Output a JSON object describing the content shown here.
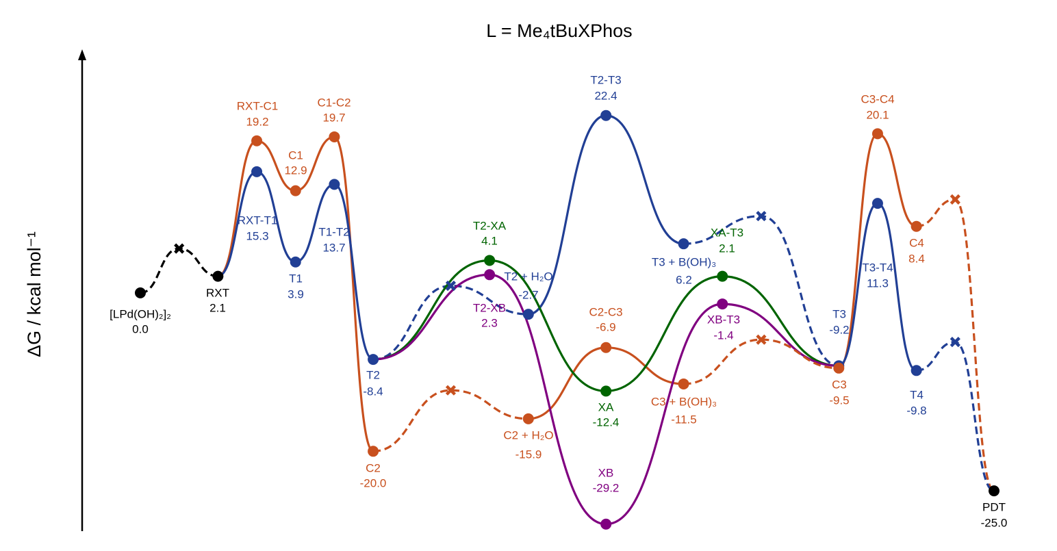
{
  "chart_data": {
    "type": "energy_profile",
    "title": "L = Me₄tBuXPhos",
    "y_label": "ΔG / kcal mol⁻¹",
    "xlim": [
      0,
      22
    ],
    "ylim": [
      -30,
      30.5
    ],
    "nodes": [
      {
        "label": "[LPd(OH)₂]₂",
        "value": 0.0,
        "value_label": "0.0",
        "x": 0,
        "color": "#000000",
        "marker": "o"
      },
      {
        "value": 5.6,
        "x": 1,
        "color": "#000000",
        "marker": "x"
      },
      {
        "label": "RXT",
        "value": 2.1,
        "value_label": "2.1",
        "x": 2,
        "color": "#000000",
        "marker": "o"
      },
      {
        "label": "RXT-C1",
        "value": 19.2,
        "value_label": "19.2",
        "x": 3,
        "color": "#c8501e",
        "marker": "o"
      },
      {
        "label": "C1",
        "value": 12.9,
        "value_label": "12.9",
        "x": 4,
        "color": "#c8501e",
        "marker": "o"
      },
      {
        "label": "C1-C2",
        "value": 19.7,
        "value_label": "19.7",
        "x": 5,
        "color": "#c8501e",
        "marker": "o"
      },
      {
        "label": "RXT-T1",
        "value": 15.3,
        "value_label": "15.3",
        "x": 3,
        "color": "#213f95",
        "marker": "o"
      },
      {
        "label": "T1",
        "value": 3.9,
        "value_label": "3.9",
        "x": 4,
        "color": "#213f95",
        "marker": "o"
      },
      {
        "label": "T1-T2",
        "value": 13.7,
        "value_label": "13.7",
        "x": 5,
        "color": "#213f95",
        "marker": "o"
      },
      {
        "label": "T2",
        "value": -8.4,
        "value_label": "-8.4",
        "x": 6,
        "color": "#213f95",
        "marker": "o"
      },
      {
        "label": "C2",
        "value": -20.0,
        "value_label": "-20.0",
        "x": 6,
        "color": "#c8501e",
        "marker": "o"
      },
      {
        "value": 0.9,
        "x": 8,
        "color": "#213f95",
        "marker": "x"
      },
      {
        "value": -12.3,
        "x": 8,
        "color": "#c8501e",
        "marker": "x"
      },
      {
        "label": "T2-XA",
        "value": 4.1,
        "value_label": "4.1",
        "x": 9,
        "color": "#006400",
        "marker": "o"
      },
      {
        "label": "T2-XB",
        "value": 2.3,
        "value_label": "2.3",
        "x": 9,
        "color": "#800080",
        "marker": "o"
      },
      {
        "label": "T2 + H₂O",
        "value": -2.7,
        "value_label": "-2.7",
        "x": 10,
        "color": "#213f95",
        "marker": "o"
      },
      {
        "label": "C2 + H₂O",
        "value": -15.9,
        "value_label": "-15.9",
        "x": 10,
        "color": "#c8501e",
        "marker": "o"
      },
      {
        "label": "T2-T3",
        "value": 22.4,
        "value_label": "22.4",
        "x": 12,
        "color": "#213f95",
        "marker": "o"
      },
      {
        "label": "C2-C3",
        "value": -6.9,
        "value_label": "-6.9",
        "x": 12,
        "color": "#c8501e",
        "marker": "o"
      },
      {
        "label": "XA",
        "value": -12.4,
        "value_label": "-12.4",
        "x": 12,
        "color": "#006400",
        "marker": "o"
      },
      {
        "label": "XB",
        "value": -29.2,
        "value_label": "-29.2",
        "x": 12,
        "color": "#800080",
        "marker": "o"
      },
      {
        "label": "T3 + B(OH)₃",
        "value": 6.2,
        "value_label": "6.2",
        "x": 14,
        "color": "#213f95",
        "marker": "o"
      },
      {
        "label": "XA-T3",
        "value": 2.1,
        "value_label": "2.1",
        "x": 15,
        "color": "#006400",
        "marker": "o"
      },
      {
        "label": "C3 + B(OH)₃",
        "value": -11.5,
        "value_label": "-11.5",
        "x": 14,
        "color": "#c8501e",
        "marker": "o"
      },
      {
        "label": "XB-T3",
        "value": -1.4,
        "value_label": "-1.4",
        "x": 15,
        "color": "#800080",
        "marker": "o"
      },
      {
        "value": 9.7,
        "x": 16,
        "color": "#213f95",
        "marker": "x"
      },
      {
        "value": -5.9,
        "x": 16,
        "color": "#c8501e",
        "marker": "x"
      },
      {
        "label": "T3",
        "value": -9.2,
        "value_label": "-9.2",
        "x": 18,
        "color": "#213f95",
        "marker": "o"
      },
      {
        "label": "C3",
        "value": -9.5,
        "value_label": "-9.5",
        "x": 18,
        "color": "#c8501e",
        "marker": "o"
      },
      {
        "label": "C3-C4",
        "value": 20.1,
        "value_label": "20.1",
        "x": 19,
        "color": "#c8501e",
        "marker": "o"
      },
      {
        "label": "T3-T4",
        "value": 11.3,
        "value_label": "11.3",
        "x": 19,
        "color": "#213f95",
        "marker": "o"
      },
      {
        "label": "C4",
        "value": 8.4,
        "value_label": "8.4",
        "x": 20,
        "color": "#c8501e",
        "marker": "o"
      },
      {
        "label": "T4",
        "value": -9.8,
        "value_label": "-9.8",
        "x": 20,
        "color": "#213f95",
        "marker": "o"
      },
      {
        "value": 11.8,
        "x": 21,
        "color": "#c8501e",
        "marker": "x"
      },
      {
        "value": -6.2,
        "x": 21,
        "color": "#213f95",
        "marker": "x"
      },
      {
        "label": "PDT",
        "value": -25.0,
        "value_label": "-25.0",
        "x": 22,
        "color": "#000000",
        "marker": "o"
      }
    ],
    "series": [
      {
        "color": "#000000",
        "dashed": true,
        "nodes": [
          0,
          1,
          2
        ]
      },
      {
        "color": "#c8501e",
        "dashed": false,
        "nodes": [
          2,
          3,
          4,
          5,
          10
        ]
      },
      {
        "color": "#213f95",
        "dashed": false,
        "nodes": [
          2,
          6,
          7,
          8,
          9
        ]
      },
      {
        "color": "#213f95",
        "dashed": true,
        "nodes": [
          9,
          11,
          15
        ]
      },
      {
        "color": "#c8501e",
        "dashed": true,
        "nodes": [
          10,
          12,
          16
        ]
      },
      {
        "color": "#213f95",
        "dashed": false,
        "nodes": [
          15,
          17,
          21
        ]
      },
      {
        "color": "#c8501e",
        "dashed": false,
        "nodes": [
          16,
          18,
          23
        ]
      },
      {
        "color": "#006400",
        "dashed": false,
        "nodes": [
          9,
          13,
          19,
          22,
          27
        ]
      },
      {
        "color": "#800080",
        "dashed": false,
        "nodes": [
          9,
          14,
          20,
          24,
          27
        ]
      },
      {
        "color": "#c8501e",
        "dashed": true,
        "nodes": [
          23,
          26,
          28
        ]
      },
      {
        "color": "#213f95",
        "dashed": true,
        "nodes": [
          21,
          25,
          27
        ]
      },
      {
        "color": "#c8501e",
        "dashed": false,
        "nodes": [
          28,
          29,
          31
        ]
      },
      {
        "color": "#213f95",
        "dashed": false,
        "nodes": [
          27,
          30,
          32
        ]
      },
      {
        "color": "#c8501e",
        "dashed": true,
        "nodes": [
          31,
          33,
          35
        ]
      },
      {
        "color": "#213f95",
        "dashed": true,
        "nodes": [
          32,
          34,
          35
        ]
      }
    ]
  }
}
